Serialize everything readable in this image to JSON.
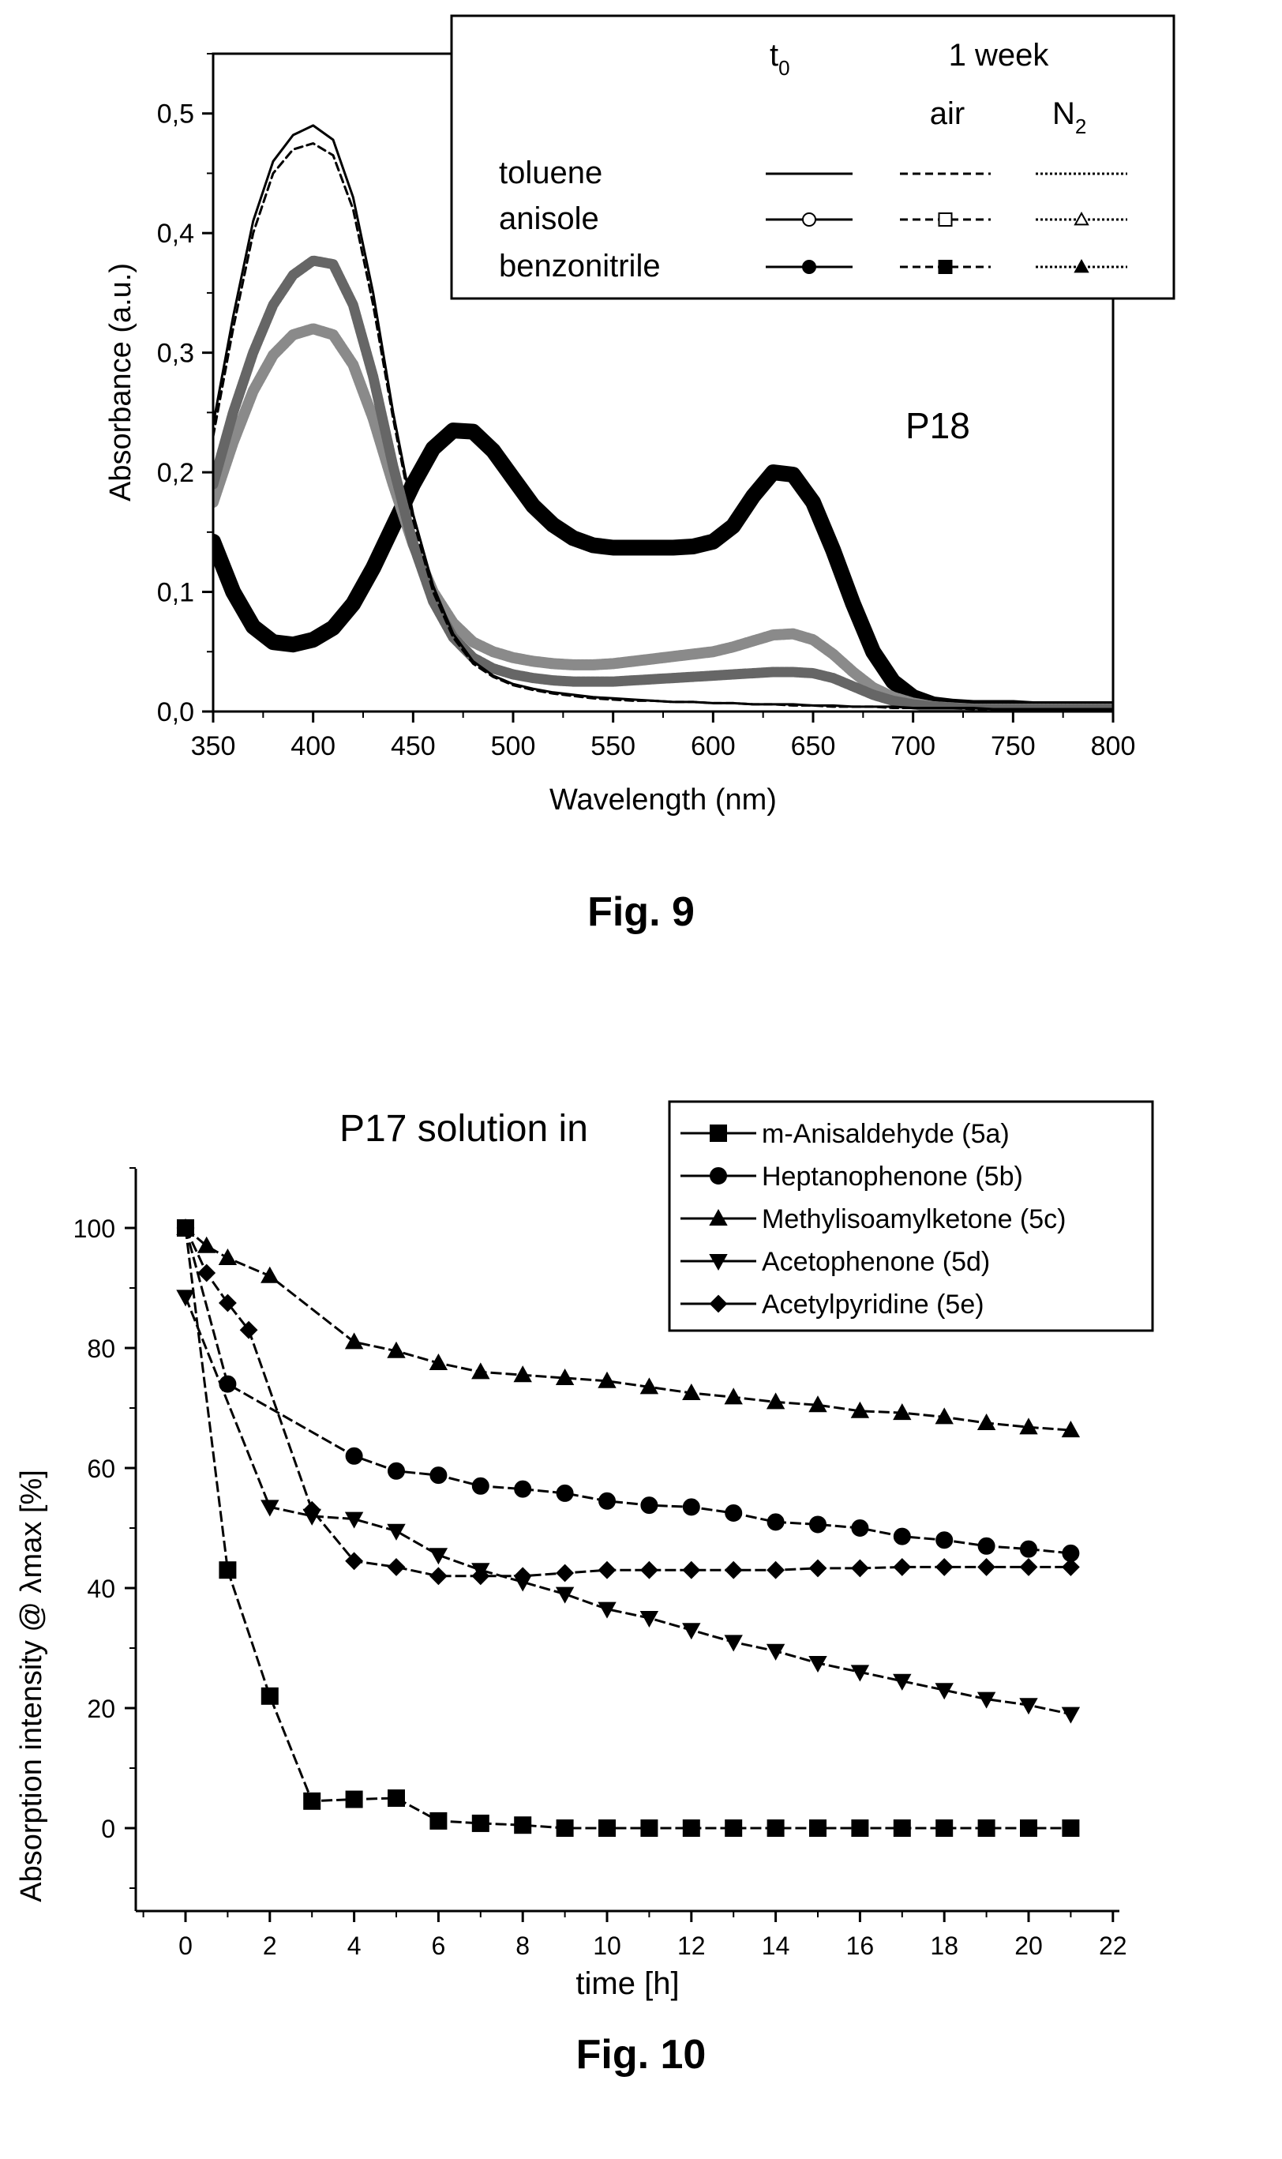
{
  "figures": {
    "fig9_caption": "Fig. 9",
    "fig10_caption": "Fig. 10",
    "fig9_panel_label": "P18",
    "fig10_title": "P17 solution in"
  },
  "legend9": {
    "header_t0": "t",
    "header_t0_sub": "0",
    "header_week": "1 week",
    "header_air": "air",
    "header_n2": "N",
    "header_n2_sub": "2"
  },
  "chart_data": [
    {
      "type": "line",
      "xlabel": "Wavelength (nm)",
      "ylabel": "Absorbance (a.u.)",
      "xlim": [
        350,
        800
      ],
      "ylim": [
        0,
        0.55
      ],
      "xticks": [
        "350",
        "400",
        "450",
        "500",
        "550",
        "600",
        "650",
        "700",
        "750",
        "800"
      ],
      "yticks": [
        "0,0",
        "0,1",
        "0,2",
        "0,3",
        "0,4",
        "0,5"
      ],
      "legend_rows": [
        "toluene",
        "anisole",
        "benzonitrile"
      ],
      "legend_columns": [
        "t0",
        "air",
        "N2"
      ],
      "x": [
        350,
        360,
        370,
        380,
        390,
        400,
        410,
        420,
        430,
        440,
        450,
        460,
        470,
        480,
        490,
        500,
        510,
        520,
        530,
        540,
        550,
        560,
        570,
        580,
        590,
        600,
        610,
        620,
        630,
        640,
        650,
        660,
        670,
        680,
        690,
        700,
        710,
        720,
        730,
        740,
        750,
        760,
        770,
        780,
        790,
        800
      ],
      "series": [
        {
          "solvent": "toluene",
          "condition": "t0",
          "color": "#000000",
          "style": "solid",
          "values": [
            0.24,
            0.33,
            0.41,
            0.46,
            0.482,
            0.49,
            0.478,
            0.43,
            0.35,
            0.25,
            0.165,
            0.105,
            0.065,
            0.042,
            0.03,
            0.023,
            0.019,
            0.016,
            0.014,
            0.012,
            0.011,
            0.01,
            0.009,
            0.008,
            0.008,
            0.007,
            0.007,
            0.006,
            0.006,
            0.006,
            0.005,
            0.005,
            0.004,
            0.004,
            0.004,
            0.003,
            0.003,
            0.003,
            0.003,
            0.002,
            0.002,
            0.002,
            0.002,
            0.002,
            0.002,
            0.002
          ]
        },
        {
          "solvent": "toluene",
          "condition": "air",
          "color": "#000000",
          "style": "dashed",
          "values": [
            0.23,
            0.32,
            0.4,
            0.45,
            0.47,
            0.475,
            0.465,
            0.42,
            0.34,
            0.245,
            0.16,
            0.1,
            0.062,
            0.04,
            0.029,
            0.022,
            0.018,
            0.015,
            0.013,
            0.011,
            0.01,
            0.009,
            0.009,
            0.008,
            0.008,
            0.007,
            0.007,
            0.006,
            0.006,
            0.005,
            0.005,
            0.004,
            0.004,
            0.004,
            0.003,
            0.003,
            0.003,
            0.003,
            0.002,
            0.002,
            0.002,
            0.002,
            0.002,
            0.002,
            0.002,
            0.002
          ]
        },
        {
          "solvent": "anisole",
          "condition": "t0",
          "color": "#777777",
          "style": "open-circle",
          "values": [
            0.19,
            0.25,
            0.3,
            0.34,
            0.365,
            0.377,
            0.374,
            0.34,
            0.28,
            0.205,
            0.14,
            0.092,
            0.062,
            0.045,
            0.036,
            0.031,
            0.028,
            0.026,
            0.025,
            0.025,
            0.025,
            0.026,
            0.027,
            0.028,
            0.029,
            0.03,
            0.031,
            0.032,
            0.033,
            0.033,
            0.032,
            0.028,
            0.021,
            0.014,
            0.009,
            0.006,
            0.004,
            0.003,
            0.002,
            0.002,
            0.002,
            0.002,
            0.002,
            0.002,
            0.002,
            0.002
          ]
        },
        {
          "solvent": "benzonitrile",
          "condition": "t0",
          "color": "#888888",
          "style": "hatched",
          "values": [
            0.175,
            0.225,
            0.268,
            0.298,
            0.315,
            0.32,
            0.315,
            0.29,
            0.245,
            0.19,
            0.14,
            0.1,
            0.074,
            0.058,
            0.05,
            0.045,
            0.042,
            0.04,
            0.039,
            0.039,
            0.04,
            0.042,
            0.044,
            0.046,
            0.048,
            0.05,
            0.054,
            0.059,
            0.064,
            0.065,
            0.06,
            0.048,
            0.033,
            0.02,
            0.012,
            0.007,
            0.004,
            0.003,
            0.002,
            0.002,
            0.002,
            0.002,
            0.002,
            0.002,
            0.002,
            0.002
          ]
        },
        {
          "solvent": "benzonitrile",
          "condition": "N2",
          "color": "#000000",
          "style": "thick-filled",
          "values": [
            0.142,
            0.1,
            0.071,
            0.058,
            0.056,
            0.06,
            0.07,
            0.09,
            0.12,
            0.155,
            0.19,
            0.22,
            0.235,
            0.234,
            0.218,
            0.195,
            0.172,
            0.156,
            0.145,
            0.139,
            0.137,
            0.137,
            0.137,
            0.137,
            0.138,
            0.142,
            0.155,
            0.18,
            0.2,
            0.198,
            0.175,
            0.135,
            0.09,
            0.05,
            0.025,
            0.012,
            0.006,
            0.004,
            0.003,
            0.003,
            0.003,
            0.002,
            0.002,
            0.002,
            0.002,
            0.002
          ]
        }
      ]
    },
    {
      "type": "line",
      "title": "P17 solution in",
      "xlabel": "time [h]",
      "ylabel": "Absorption intensity @ λmax [%]",
      "xlim": [
        -1,
        22
      ],
      "ylim": [
        -10,
        110
      ],
      "xticks": [
        "0",
        "2",
        "4",
        "6",
        "8",
        "10",
        "12",
        "14",
        "16",
        "18",
        "20",
        "22"
      ],
      "yticks": [
        "0",
        "20",
        "40",
        "60",
        "80",
        "100"
      ],
      "legend": "top-right",
      "series": [
        {
          "name": "m-Anisaldehyde (5a)",
          "marker": "square",
          "x": [
            0,
            1,
            2,
            3,
            4,
            5,
            6,
            7,
            8,
            9,
            10,
            11,
            12,
            13,
            14,
            15,
            16,
            17,
            18,
            19,
            20,
            21
          ],
          "values": [
            100,
            43,
            22,
            4.5,
            4.8,
            5,
            1.2,
            0.8,
            0.5,
            0,
            0,
            0,
            0,
            0,
            0,
            0,
            0,
            0,
            0,
            0,
            0,
            0
          ]
        },
        {
          "name": "Heptanophenone (5b)",
          "marker": "circle",
          "x": [
            0,
            1,
            4,
            5,
            6,
            7,
            8,
            9,
            10,
            11,
            12,
            13,
            14,
            15,
            16,
            17,
            18,
            19,
            20,
            21
          ],
          "values": [
            100,
            74,
            62,
            59.5,
            58.8,
            57,
            56.5,
            55.8,
            54.5,
            53.8,
            53.5,
            52.5,
            51,
            50.6,
            50,
            48.6,
            48,
            47,
            46.5,
            45.8
          ]
        },
        {
          "name": "Methylisoamylketone (5c)",
          "marker": "triangle-up",
          "x": [
            0,
            0.5,
            1,
            2,
            4,
            5,
            6,
            7,
            8,
            9,
            10,
            11,
            12,
            13,
            14,
            15,
            16,
            17,
            18,
            19,
            20,
            21
          ],
          "values": [
            100,
            97,
            95,
            92,
            81,
            79.5,
            77.5,
            76,
            75.5,
            75,
            74.5,
            73.5,
            72.5,
            71.8,
            71,
            70.5,
            69.5,
            69.2,
            68.5,
            67.5,
            66.8,
            66.3
          ]
        },
        {
          "name": "Acetophenone (5d)",
          "marker": "triangle-down",
          "x": [
            0,
            2,
            3,
            4,
            5,
            6,
            7,
            8,
            9,
            10,
            11,
            12,
            13,
            14,
            15,
            16,
            17,
            18,
            19,
            20,
            21
          ],
          "values": [
            88.5,
            53.5,
            52,
            51.5,
            49.5,
            45.5,
            43,
            41,
            39,
            36.5,
            35,
            33,
            31,
            29.5,
            27.5,
            26,
            24.5,
            23,
            21.5,
            20.5,
            19
          ]
        },
        {
          "name": "Acetylpyridine (5e)",
          "marker": "diamond",
          "x": [
            0,
            0.5,
            1,
            1.5,
            3,
            4,
            5,
            6,
            7,
            8,
            9,
            10,
            11,
            12,
            13,
            14,
            15,
            16,
            17,
            18,
            19,
            20,
            21
          ],
          "values": [
            100,
            92.5,
            87.5,
            83,
            53,
            44.5,
            43.5,
            42,
            42,
            42,
            42.5,
            43,
            43,
            43,
            43,
            43,
            43.3,
            43.3,
            43.5,
            43.5,
            43.5,
            43.5,
            43.5
          ]
        }
      ]
    }
  ]
}
